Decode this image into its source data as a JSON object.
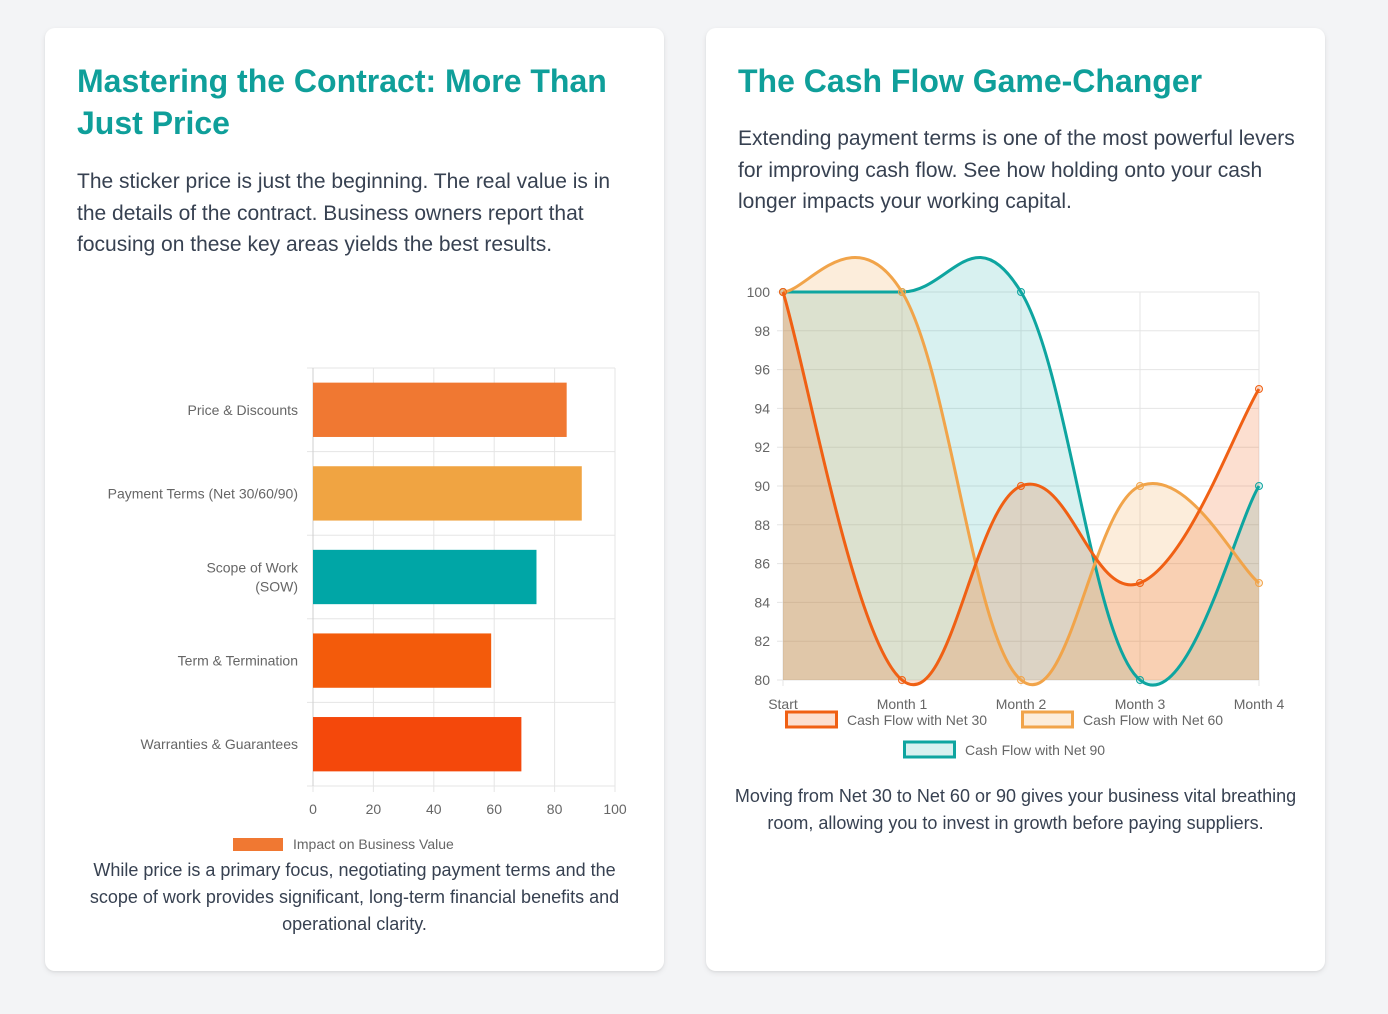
{
  "left_card": {
    "title": "Mastering the Contract: More Than Just Price",
    "intro": "The sticker price is just the beginning. The real value is in the details of the contract. Business owners report that focusing on these key areas yields the best results.",
    "note": "While price is a primary focus, negotiating payment terms and the scope of work provides significant, long-term financial benefits and operational clarity."
  },
  "right_card": {
    "title": "The Cash Flow Game-Changer",
    "intro": "Extending payment terms is one of the most powerful levers for improving cash flow. See how holding onto your cash longer impacts your working capital.",
    "note": "Moving from Net 30 to Net 60 or 90 gives your business vital breathing room, allowing you to invest in growth before paying suppliers."
  },
  "chart_data": [
    {
      "type": "bar",
      "orientation": "horizontal",
      "categories": [
        [
          "Price & Discounts"
        ],
        [
          "Payment Terms (Net 30/60/90)"
        ],
        [
          "Scope of Work",
          "(SOW)"
        ],
        [
          "Term & Termination"
        ],
        [
          "Warranties & Guarantees"
        ]
      ],
      "series": [
        {
          "name": "Impact on Business Value",
          "values": [
            84,
            89,
            74,
            59,
            69
          ],
          "colors": [
            "#f07832",
            "#f0a442",
            "#00a6a6",
            "#f35b0b",
            "#f4480b"
          ]
        }
      ],
      "xlim": [
        0,
        100
      ],
      "xticks": [
        0,
        20,
        40,
        60,
        80,
        100
      ],
      "legend_color": "#f07832",
      "grid": true,
      "legend_position": "bottom"
    },
    {
      "type": "area",
      "categories": [
        "Start",
        "Month 1",
        "Month 2",
        "Month 3",
        "Month 4"
      ],
      "series": [
        {
          "name": "Cash Flow with Net 30",
          "values": [
            100,
            80,
            90,
            85,
            95
          ],
          "color": "#f06014",
          "fill": "rgba(240,96,20,0.2)"
        },
        {
          "name": "Cash Flow with Net 60",
          "values": [
            100,
            100,
            80,
            90,
            85
          ],
          "color": "#f1a44a",
          "fill": "rgba(241,164,74,0.2)"
        },
        {
          "name": "Cash Flow with Net 90",
          "values": [
            100,
            100,
            100,
            80,
            90
          ],
          "color": "#0ea5a0",
          "fill": "rgba(14,165,160,0.16)"
        }
      ],
      "ylim": [
        80,
        100
      ],
      "yticks": [
        80,
        82,
        84,
        86,
        88,
        90,
        92,
        94,
        96,
        98,
        100
      ],
      "grid": true,
      "legend_position": "bottom"
    }
  ]
}
